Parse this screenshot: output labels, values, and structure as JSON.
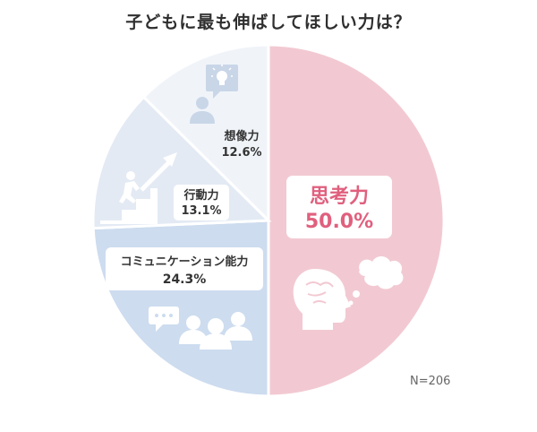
{
  "chart_data": {
    "type": "pie",
    "title": "子どもに最も伸ばしてほしい力は？",
    "start": "12 o'clock",
    "direction": "clockwise",
    "slices": [
      {
        "label": "思考力",
        "value": 50.0,
        "value_label": "50.0%",
        "color": "#f2c9d2",
        "text_color": "#e0607e",
        "icon": "brain-thought-icon"
      },
      {
        "label": "コミュニケーション能力",
        "value": 24.3,
        "value_label": "24.3%",
        "color": "#cddcef",
        "text_color": "#333333",
        "icon": "people-chat-icon"
      },
      {
        "label": "行動力",
        "value": 13.1,
        "value_label": "13.1%",
        "color": "#e3eaf4",
        "text_color": "#333333",
        "icon": "climbing-icon"
      },
      {
        "label": "想像力",
        "value": 12.6,
        "value_label": "12.6%",
        "color": "#f0f4f9",
        "text_color": "#333333",
        "icon": "person-idea-icon"
      }
    ],
    "annotation": "N=206",
    "legend": "none",
    "grid": false
  }
}
